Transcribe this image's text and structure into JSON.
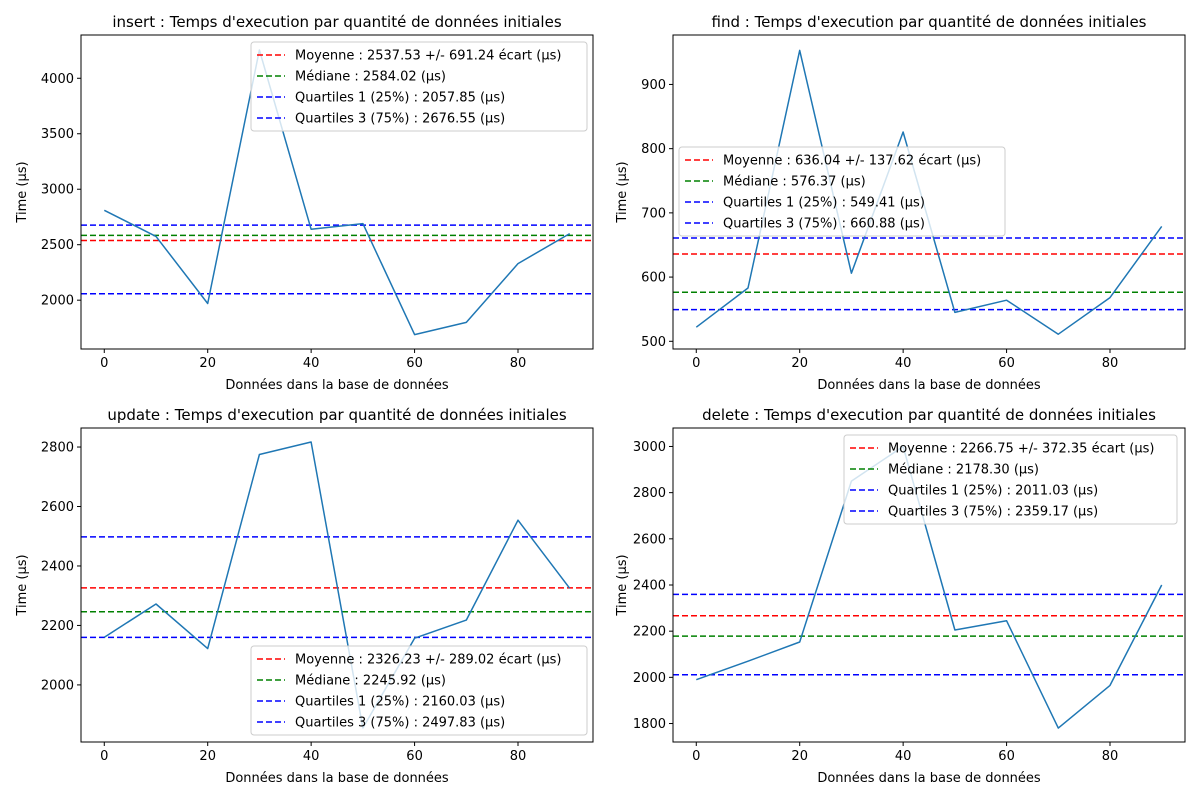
{
  "colors": {
    "series": "#1f77b4",
    "mean": "#ff0000",
    "median": "#008000",
    "quartile": "#0000ff"
  },
  "chart_data": [
    {
      "type": "line",
      "title": "insert : Temps d'execution par quantité de données initiales",
      "xlabel": "Données dans la base de données",
      "ylabel": "Time (µs)",
      "x": [
        0,
        10,
        20,
        30,
        40,
        50,
        60,
        70,
        80,
        90
      ],
      "y": [
        2810,
        2575,
        1970,
        4255,
        2640,
        2690,
        1690,
        1800,
        2330,
        2600
      ],
      "xlim": [
        -4.5,
        94.5
      ],
      "ylim": [
        1560,
        4390
      ],
      "xticks": [
        0,
        20,
        40,
        60,
        80
      ],
      "yticks": [
        2000,
        2500,
        3000,
        3500,
        4000
      ],
      "hlines": [
        {
          "label": "Moyenne : 2537.53 +/- 691.24 écart (µs)",
          "value": 2537.53,
          "color": "#ff0000"
        },
        {
          "label": "Médiane : 2584.02 (µs)",
          "value": 2584.02,
          "color": "#008000"
        },
        {
          "label": "Quartiles 1 (25%) : 2057.85 (µs)",
          "value": 2057.85,
          "color": "#0000ff"
        },
        {
          "label": "Quartiles 3 (75%) : 2676.55 (µs)",
          "value": 2676.55,
          "color": "#0000ff"
        }
      ],
      "legend_position": "upper-right"
    },
    {
      "type": "line",
      "title": "find : Temps d'execution par quantité de données initiales",
      "xlabel": "Données dans la base de données",
      "ylabel": "Time (µs)",
      "x": [
        0,
        10,
        20,
        30,
        40,
        50,
        60,
        70,
        80,
        90
      ],
      "y": [
        522,
        583,
        953,
        606,
        826,
        545,
        564,
        511,
        568,
        679
      ],
      "xlim": [
        -4.5,
        94.5
      ],
      "ylim": [
        488,
        977
      ],
      "xticks": [
        0,
        20,
        40,
        60,
        80
      ],
      "yticks": [
        500,
        600,
        700,
        800,
        900
      ],
      "hlines": [
        {
          "label": "Moyenne : 636.04 +/- 137.62 écart (µs)",
          "value": 636.04,
          "color": "#ff0000"
        },
        {
          "label": "Médiane : 576.37 (µs)",
          "value": 576.37,
          "color": "#008000"
        },
        {
          "label": "Quartiles 1 (25%) : 549.41 (µs)",
          "value": 549.41,
          "color": "#0000ff"
        },
        {
          "label": "Quartiles 3 (75%) : 660.88 (µs)",
          "value": 660.88,
          "color": "#0000ff"
        }
      ],
      "legend_position": "center-left"
    },
    {
      "type": "line",
      "title": "update : Temps d'execution par quantité de données initiales",
      "xlabel": "Données dans la base de données",
      "ylabel": "Time (µs)",
      "x": [
        0,
        10,
        20,
        30,
        40,
        50,
        60,
        70,
        80,
        90
      ],
      "y": [
        2160,
        2272,
        2122,
        2775,
        2817,
        1855,
        2157,
        2218,
        2554,
        2325
      ],
      "xlim": [
        -4.5,
        94.5
      ],
      "ylim": [
        1808,
        2864
      ],
      "xticks": [
        0,
        20,
        40,
        60,
        80
      ],
      "yticks": [
        2000,
        2200,
        2400,
        2600,
        2800
      ],
      "hlines": [
        {
          "label": "Moyenne : 2326.23 +/- 289.02 écart (µs)",
          "value": 2326.23,
          "color": "#ff0000"
        },
        {
          "label": "Médiane : 2245.92 (µs)",
          "value": 2245.92,
          "color": "#008000"
        },
        {
          "label": "Quartiles 1 (25%) : 2160.03 (µs)",
          "value": 2160.03,
          "color": "#0000ff"
        },
        {
          "label": "Quartiles 3 (75%) : 2497.83 (µs)",
          "value": 2497.83,
          "color": "#0000ff"
        }
      ],
      "legend_position": "lower-right"
    },
    {
      "type": "line",
      "title": "delete : Temps d'execution par quantité de données initiales",
      "xlabel": "Données dans la base de données",
      "ylabel": "Time (µs)",
      "x": [
        0,
        10,
        20,
        30,
        40,
        50,
        60,
        70,
        80,
        90
      ],
      "y": [
        1990,
        2070,
        2153,
        2850,
        3000,
        2205,
        2245,
        1780,
        1965,
        2400
      ],
      "xlim": [
        -4.5,
        94.5
      ],
      "ylim": [
        1720,
        3080
      ],
      "xticks": [
        0,
        20,
        40,
        60,
        80
      ],
      "yticks": [
        1800,
        2000,
        2200,
        2400,
        2600,
        2800,
        3000
      ],
      "hlines": [
        {
          "label": "Moyenne : 2266.75 +/- 372.35 écart (µs)",
          "value": 2266.75,
          "color": "#ff0000"
        },
        {
          "label": "Médiane : 2178.30 (µs)",
          "value": 2178.3,
          "color": "#008000"
        },
        {
          "label": "Quartiles 1 (25%) : 2011.03 (µs)",
          "value": 2011.03,
          "color": "#0000ff"
        },
        {
          "label": "Quartiles 3 (75%) : 2359.17 (µs)",
          "value": 2359.17,
          "color": "#0000ff"
        }
      ],
      "legend_position": "upper-right"
    }
  ]
}
